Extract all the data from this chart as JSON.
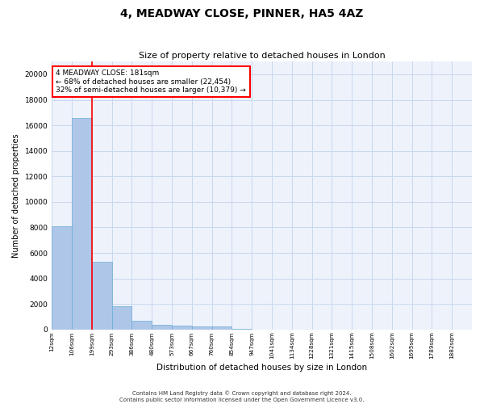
{
  "title": "4, MEADWAY CLOSE, PINNER, HA5 4AZ",
  "subtitle": "Size of property relative to detached houses in London",
  "xlabel": "Distribution of detached houses by size in London",
  "ylabel": "Number of detached properties",
  "bar_color": "#aec6e8",
  "bar_edge_color": "#6baed6",
  "grid_color": "#c8d8ee",
  "background_color": "#eef2fb",
  "categories": [
    "12sqm",
    "106sqm",
    "199sqm",
    "293sqm",
    "386sqm",
    "480sqm",
    "573sqm",
    "667sqm",
    "760sqm",
    "854sqm",
    "947sqm",
    "1041sqm",
    "1134sqm",
    "1228sqm",
    "1321sqm",
    "1415sqm",
    "1508sqm",
    "1602sqm",
    "1695sqm",
    "1789sqm",
    "1882sqm"
  ],
  "values": [
    8100,
    16600,
    5300,
    1850,
    700,
    380,
    280,
    230,
    220,
    50,
    0,
    0,
    0,
    0,
    0,
    0,
    0,
    0,
    0,
    0,
    0
  ],
  "ylim": [
    0,
    21000
  ],
  "yticks": [
    0,
    2000,
    4000,
    6000,
    8000,
    10000,
    12000,
    14000,
    16000,
    18000,
    20000
  ],
  "red_line_after_bin": 1,
  "annotation_text_line1": "4 MEADWAY CLOSE: 181sqm",
  "annotation_text_line2": "← 68% of detached houses are smaller (22,454)",
  "annotation_text_line3": "32% of semi-detached houses are larger (10,379) →",
  "footer": "Contains HM Land Registry data © Crown copyright and database right 2024.\nContains public sector information licensed under the Open Government Licence v3.0."
}
